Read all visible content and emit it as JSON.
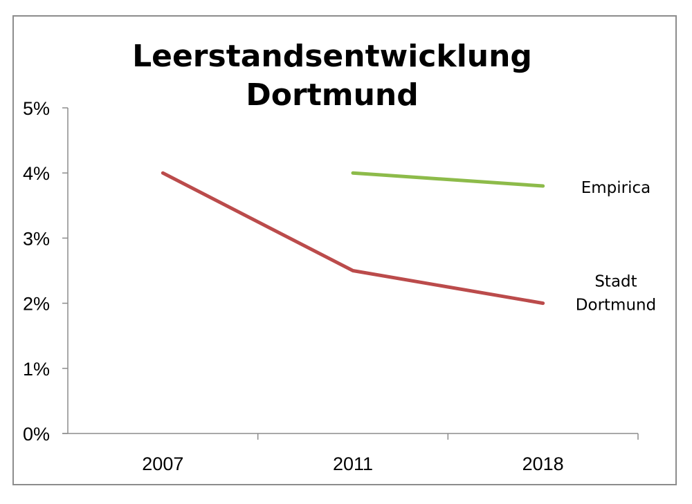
{
  "chart_data": {
    "type": "line",
    "title_lines": [
      "Leerstandsentwicklung",
      "Dortmund"
    ],
    "categories": [
      "2007",
      "2011",
      "2018"
    ],
    "y_ticks": [
      "0%",
      "1%",
      "2%",
      "3%",
      "4%",
      "5%"
    ],
    "ylim": [
      0,
      5
    ],
    "grid": false,
    "series": [
      {
        "name": "Empirica",
        "label_lines": [
          "Empirica"
        ],
        "color": "#8dbb4a",
        "values": [
          null,
          4.0,
          3.8
        ]
      },
      {
        "name": "Stadt Dortmund",
        "label_lines": [
          "Stadt",
          "Dortmund"
        ],
        "color": "#bb4b4b",
        "values": [
          4.0,
          2.5,
          2.0
        ]
      }
    ]
  }
}
